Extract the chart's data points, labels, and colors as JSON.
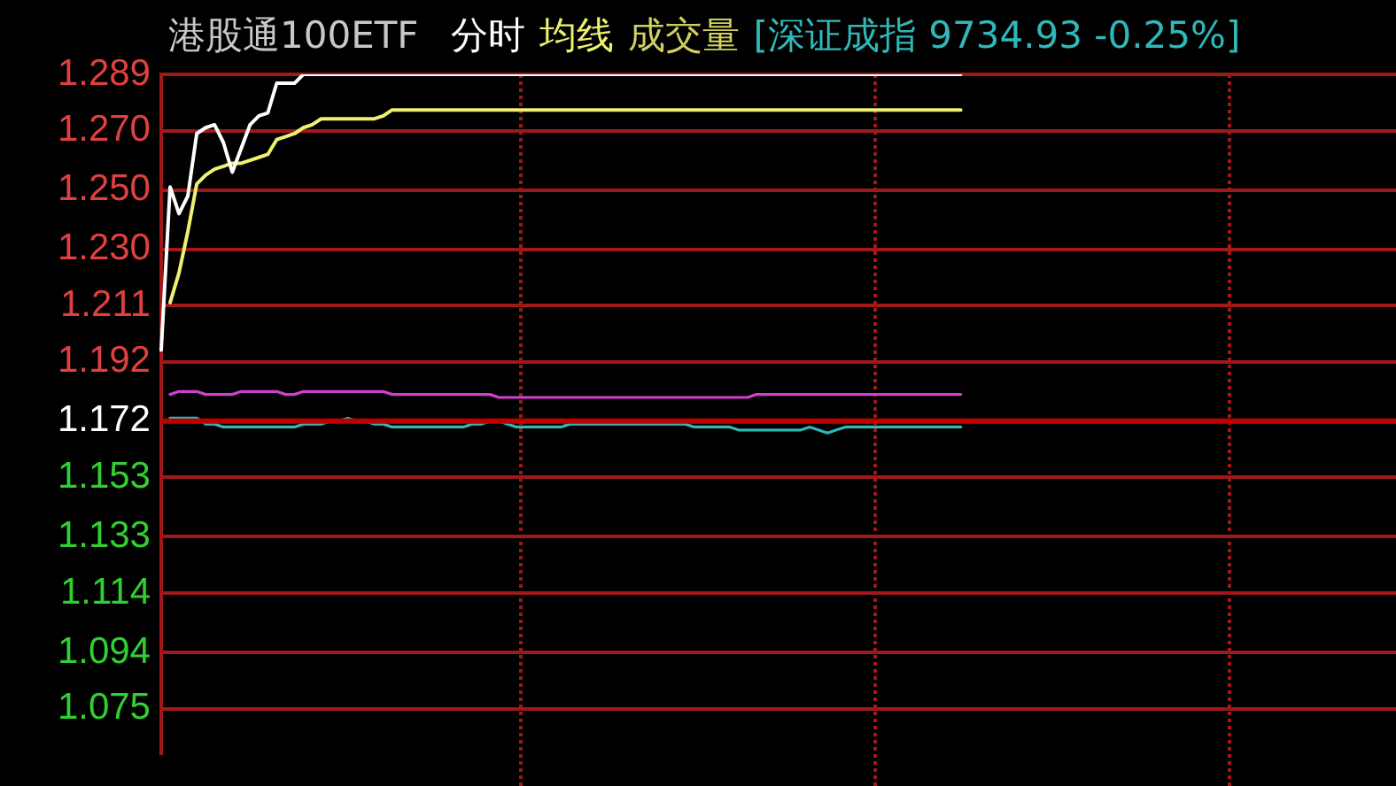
{
  "chart_data": {
    "type": "line",
    "title": "港股通100ETF",
    "annotations": [
      "成交量",
      "[深证成指 9734.93 -0.25%]"
    ],
    "grid": "y",
    "tick_labels": "y",
    "marker": "none",
    "line_style": "solid",
    "categories": [
      null,
      null,
      null,
      null,
      null,
      null,
      null,
      null,
      null,
      null,
      null,
      null,
      null,
      null,
      null,
      null,
      null,
      null,
      null,
      null,
      null,
      null,
      null,
      null,
      null,
      null,
      null,
      null,
      null,
      null,
      null,
      null,
      null,
      null,
      null,
      null,
      null,
      null,
      null,
      null,
      null,
      null,
      null,
      null,
      null,
      null,
      null,
      null,
      null,
      null,
      null,
      null,
      null,
      null,
      null,
      null,
      null,
      null,
      null,
      null,
      null,
      null,
      null,
      null,
      null,
      null,
      null,
      null,
      null,
      null,
      null,
      null,
      null,
      null,
      null,
      null,
      null,
      null,
      null,
      null,
      null,
      null,
      null,
      null,
      null,
      null,
      null,
      null,
      null,
      null,
      null,
      null,
      null,
      null,
      null,
      null,
      null,
      null,
      null,
      null,
      null,
      null,
      null,
      null,
      null,
      null,
      null,
      null,
      null,
      null,
      null,
      null,
      null,
      null,
      null,
      null,
      null,
      null,
      null,
      null,
      null,
      null,
      null,
      null,
      null,
      null,
      null,
      null,
      null,
      null,
      null,
      null,
      null,
      null,
      null,
      null,
      null,
      null,
      null,
      null
    ],
    "ylim": [
      1.06,
      1.289
    ],
    "yticks": [
      1.075,
      1.094,
      1.114,
      1.133,
      1.153,
      1.172,
      1.192,
      1.211,
      {
        "value": 1.23,
        "label": "1.230"
      },
      {
        "value": 1.25,
        "label": "1.250"
      },
      {
        "value": 1.27,
        "label": "1.270"
      },
      1.289
    ],
    "ref_lines": [
      {
        "axis": "y",
        "value": 1.172,
        "color": "#c00000"
      }
    ],
    "series": [
      {
        "name": "分时",
        "color": "#ffffff",
        "values": [
          1.196,
          1.251,
          1.242,
          1.248,
          1.269,
          1.271,
          1.272,
          1.266,
          1.256,
          1.264,
          1.272,
          1.275,
          1.276,
          1.286,
          1.286,
          1.286,
          1.289,
          1.289,
          1.289,
          1.289,
          1.289,
          1.289,
          1.289,
          1.289,
          1.289,
          1.289,
          1.289,
          1.289,
          1.289,
          1.289,
          1.289,
          1.289,
          1.289,
          1.289,
          1.289,
          1.289,
          1.289,
          1.289,
          1.289,
          1.289,
          1.289,
          1.289,
          1.289,
          1.289,
          1.289,
          1.289,
          1.289,
          1.289,
          1.289,
          1.289,
          1.289,
          1.289,
          1.289,
          1.289,
          1.289,
          1.289,
          1.289,
          1.289,
          1.289,
          1.289,
          1.289,
          1.289,
          1.289,
          1.289,
          1.289,
          1.289,
          1.289,
          1.289,
          1.289,
          1.289,
          1.289,
          1.289,
          1.289,
          1.289,
          1.289,
          1.289,
          1.289,
          1.289,
          1.289,
          1.289,
          1.289,
          1.289,
          1.289,
          1.289,
          1.289,
          1.289,
          1.289,
          1.289,
          1.289,
          1.289,
          1.289,
          null,
          null,
          null,
          null,
          null,
          null,
          null,
          null,
          null,
          null,
          null,
          null,
          null,
          null,
          null,
          null,
          null,
          null,
          null,
          null,
          null,
          null,
          null,
          null,
          null,
          null,
          null,
          null,
          null,
          null,
          null,
          null,
          null,
          null,
          null,
          null,
          null,
          null,
          null,
          null,
          null,
          null,
          null,
          null,
          null,
          null,
          null,
          null,
          null
        ]
      },
      {
        "name": "均线",
        "color": "#f0f070",
        "values": [
          null,
          1.212,
          1.222,
          1.236,
          1.252,
          1.255,
          1.257,
          1.258,
          1.259,
          1.259,
          1.26,
          1.261,
          1.262,
          1.267,
          1.268,
          1.269,
          1.271,
          1.272,
          1.274,
          1.274,
          1.274,
          1.274,
          1.274,
          1.274,
          1.274,
          1.275,
          1.277,
          1.277,
          1.277,
          1.277,
          1.277,
          1.277,
          1.277,
          1.277,
          1.277,
          1.277,
          1.277,
          1.277,
          1.277,
          1.277,
          1.277,
          1.277,
          1.277,
          1.277,
          1.277,
          1.277,
          1.277,
          1.277,
          1.277,
          1.277,
          1.277,
          1.277,
          1.277,
          1.277,
          1.277,
          1.277,
          1.277,
          1.277,
          1.277,
          1.277,
          1.277,
          1.277,
          1.277,
          1.277,
          1.277,
          1.277,
          1.277,
          1.277,
          1.277,
          1.277,
          1.277,
          1.277,
          1.277,
          1.277,
          1.277,
          1.277,
          1.277,
          1.277,
          1.277,
          1.277,
          1.277,
          1.277,
          1.277,
          1.277,
          1.277,
          1.277,
          1.277,
          1.277,
          1.277,
          1.277,
          1.277,
          null,
          null,
          null,
          null,
          null,
          null,
          null,
          null,
          null,
          null,
          null,
          null,
          null,
          null,
          null,
          null,
          null,
          null,
          null,
          null,
          null,
          null,
          null,
          null,
          null,
          null,
          null,
          null,
          null,
          null,
          null,
          null,
          null,
          null,
          null,
          null,
          null,
          null,
          null,
          null,
          null,
          null,
          null,
          null,
          null,
          null,
          null,
          null,
          null
        ]
      },
      {
        "color": "#d040d0",
        "values": [
          null,
          1.181,
          1.182,
          1.182,
          1.182,
          1.181,
          1.181,
          1.181,
          1.181,
          1.182,
          1.182,
          1.182,
          1.182,
          1.182,
          1.181,
          1.181,
          1.182,
          1.182,
          1.182,
          1.182,
          1.182,
          1.182,
          1.182,
          1.182,
          1.182,
          1.182,
          1.181,
          1.181,
          1.181,
          1.181,
          1.181,
          1.181,
          1.181,
          1.181,
          1.181,
          1.181,
          1.181,
          1.181,
          1.18,
          1.18,
          1.18,
          1.18,
          1.18,
          1.18,
          1.18,
          1.18,
          1.18,
          1.18,
          1.18,
          1.18,
          1.18,
          1.18,
          1.18,
          1.18,
          1.18,
          1.18,
          1.18,
          1.18,
          1.18,
          1.18,
          1.18,
          1.18,
          1.18,
          1.18,
          1.18,
          1.18,
          1.18,
          1.181,
          1.181,
          1.181,
          1.181,
          1.181,
          1.181,
          1.181,
          1.181,
          1.181,
          1.181,
          1.181,
          1.181,
          1.181,
          1.181,
          1.181,
          1.181,
          1.181,
          1.181,
          1.181,
          1.181,
          1.181,
          1.181,
          1.181,
          1.181,
          null,
          null,
          null,
          null,
          null,
          null,
          null,
          null,
          null,
          null,
          null,
          null,
          null,
          null,
          null,
          null,
          null,
          null,
          null,
          null,
          null,
          null,
          null,
          null,
          null,
          null,
          null,
          null,
          null,
          null,
          null,
          null,
          null,
          null,
          null,
          null,
          null,
          null,
          null,
          null,
          null,
          null,
          null,
          null,
          null,
          null,
          null,
          null,
          null
        ]
      },
      {
        "color": "#30b8b8",
        "values": [
          null,
          1.173,
          1.173,
          1.173,
          1.173,
          1.171,
          1.171,
          1.17,
          1.17,
          1.17,
          1.17,
          1.17,
          1.17,
          1.17,
          1.17,
          1.17,
          1.171,
          1.171,
          1.171,
          1.172,
          1.172,
          1.173,
          1.172,
          1.172,
          1.171,
          1.171,
          1.17,
          1.17,
          1.17,
          1.17,
          1.17,
          1.17,
          1.17,
          1.17,
          1.17,
          1.171,
          1.171,
          1.172,
          1.172,
          1.171,
          1.17,
          1.17,
          1.17,
          1.17,
          1.17,
          1.17,
          1.171,
          1.171,
          1.171,
          1.171,
          1.171,
          1.171,
          1.171,
          1.171,
          1.171,
          1.171,
          1.171,
          1.171,
          1.171,
          1.171,
          1.17,
          1.17,
          1.17,
          1.17,
          1.17,
          1.169,
          1.169,
          1.169,
          1.169,
          1.169,
          1.169,
          1.169,
          1.169,
          1.17,
          1.169,
          1.168,
          1.169,
          1.17,
          1.17,
          1.17,
          1.17,
          1.17,
          1.17,
          1.17,
          1.17,
          1.17,
          1.17,
          1.17,
          1.17,
          1.17,
          1.17,
          null,
          null,
          null,
          null,
          null,
          null,
          null,
          null,
          null,
          null,
          null,
          null,
          null,
          null,
          null,
          null,
          null,
          null,
          null,
          null,
          null,
          null,
          null,
          null,
          null,
          null,
          null,
          null,
          null,
          null,
          null,
          null,
          null,
          null,
          null,
          null,
          null,
          null,
          null,
          null,
          null,
          null,
          null,
          null,
          null,
          null,
          null,
          null,
          null
        ]
      }
    ]
  }
}
